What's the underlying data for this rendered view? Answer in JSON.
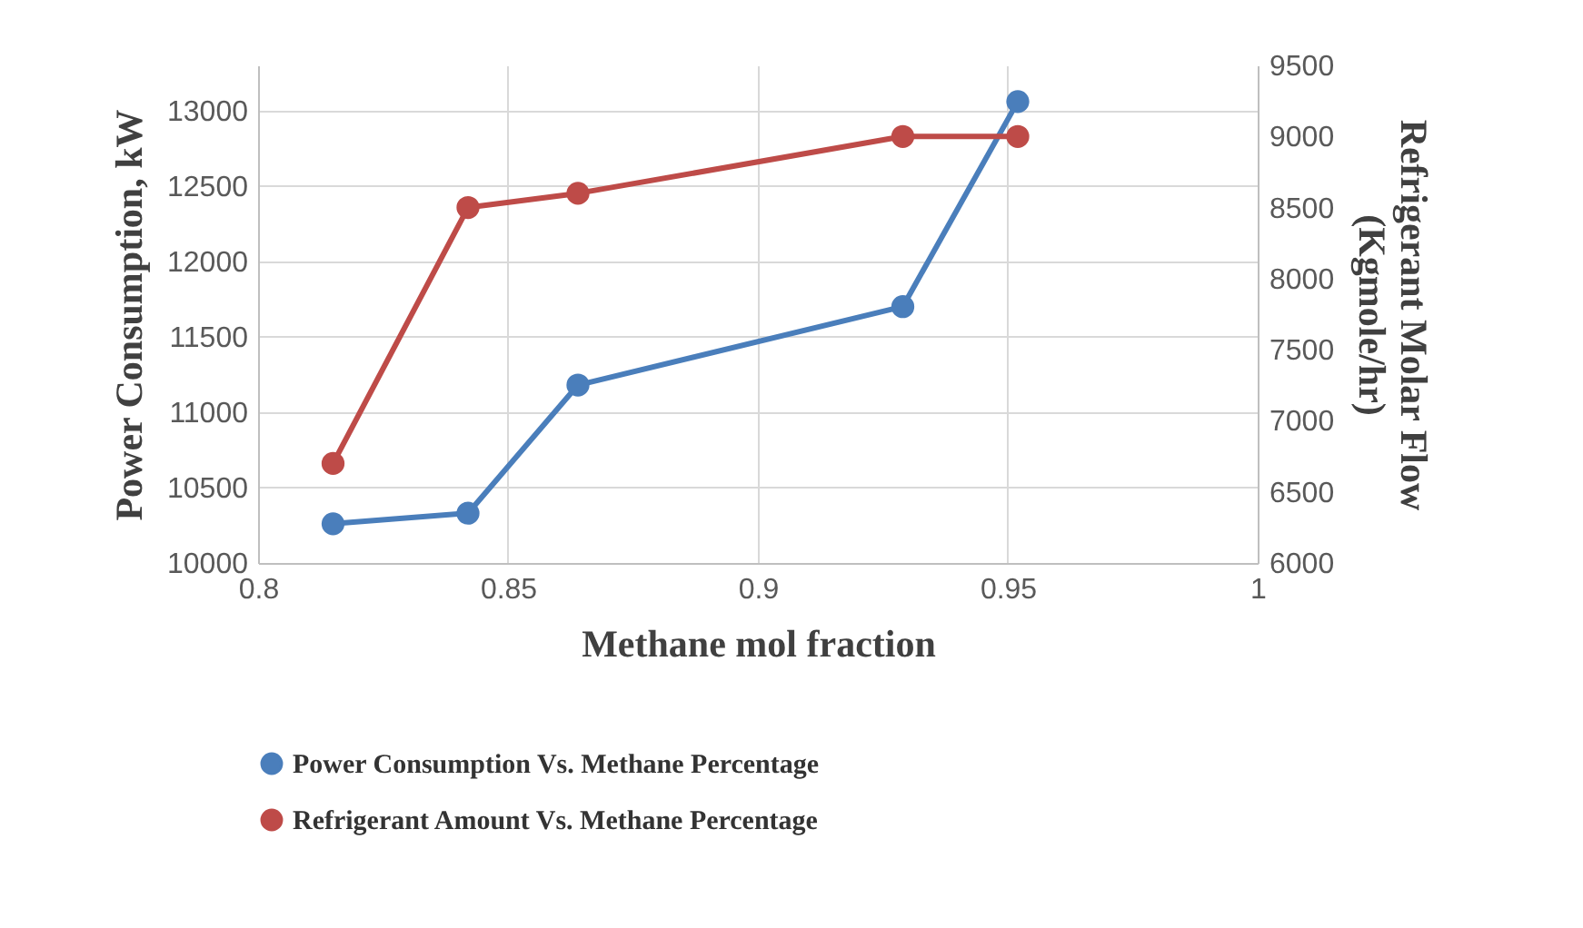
{
  "chart_data": {
    "type": "line",
    "xlabel": "Methane mol fraction",
    "ylabel": "Power Consumption, kW",
    "y2label": "Refrigerant Molar Flow (Kgmole/hr)",
    "x": [
      0.815,
      0.842,
      0.864,
      0.929,
      0.952
    ],
    "series": [
      {
        "name": "Power Consumption Vs. Methane Percentage",
        "color": "#4a7ebb",
        "values": [
          10260,
          10330,
          11180,
          11700,
          13060
        ]
      },
      {
        "name": "Refrigerant Amount Vs. Methane Percentage",
        "color": "#be4b48",
        "values": [
          6700,
          8500,
          8600,
          9000,
          9000
        ],
        "axis": "y2"
      }
    ],
    "xlim": [
      0.8,
      1
    ],
    "xticks": [
      0.8,
      0.85,
      0.9,
      0.95,
      1
    ],
    "ylim": [
      10000,
      13300
    ],
    "yticks": [
      10000,
      10500,
      11000,
      11500,
      12000,
      12500,
      13000
    ],
    "y2lim": [
      6000,
      9500
    ],
    "y2ticks": [
      6000,
      6500,
      7000,
      7500,
      8000,
      8500,
      9000,
      9500
    ],
    "grid": true,
    "legend": "bottom",
    "marker": "circle",
    "line_style": "solid"
  }
}
